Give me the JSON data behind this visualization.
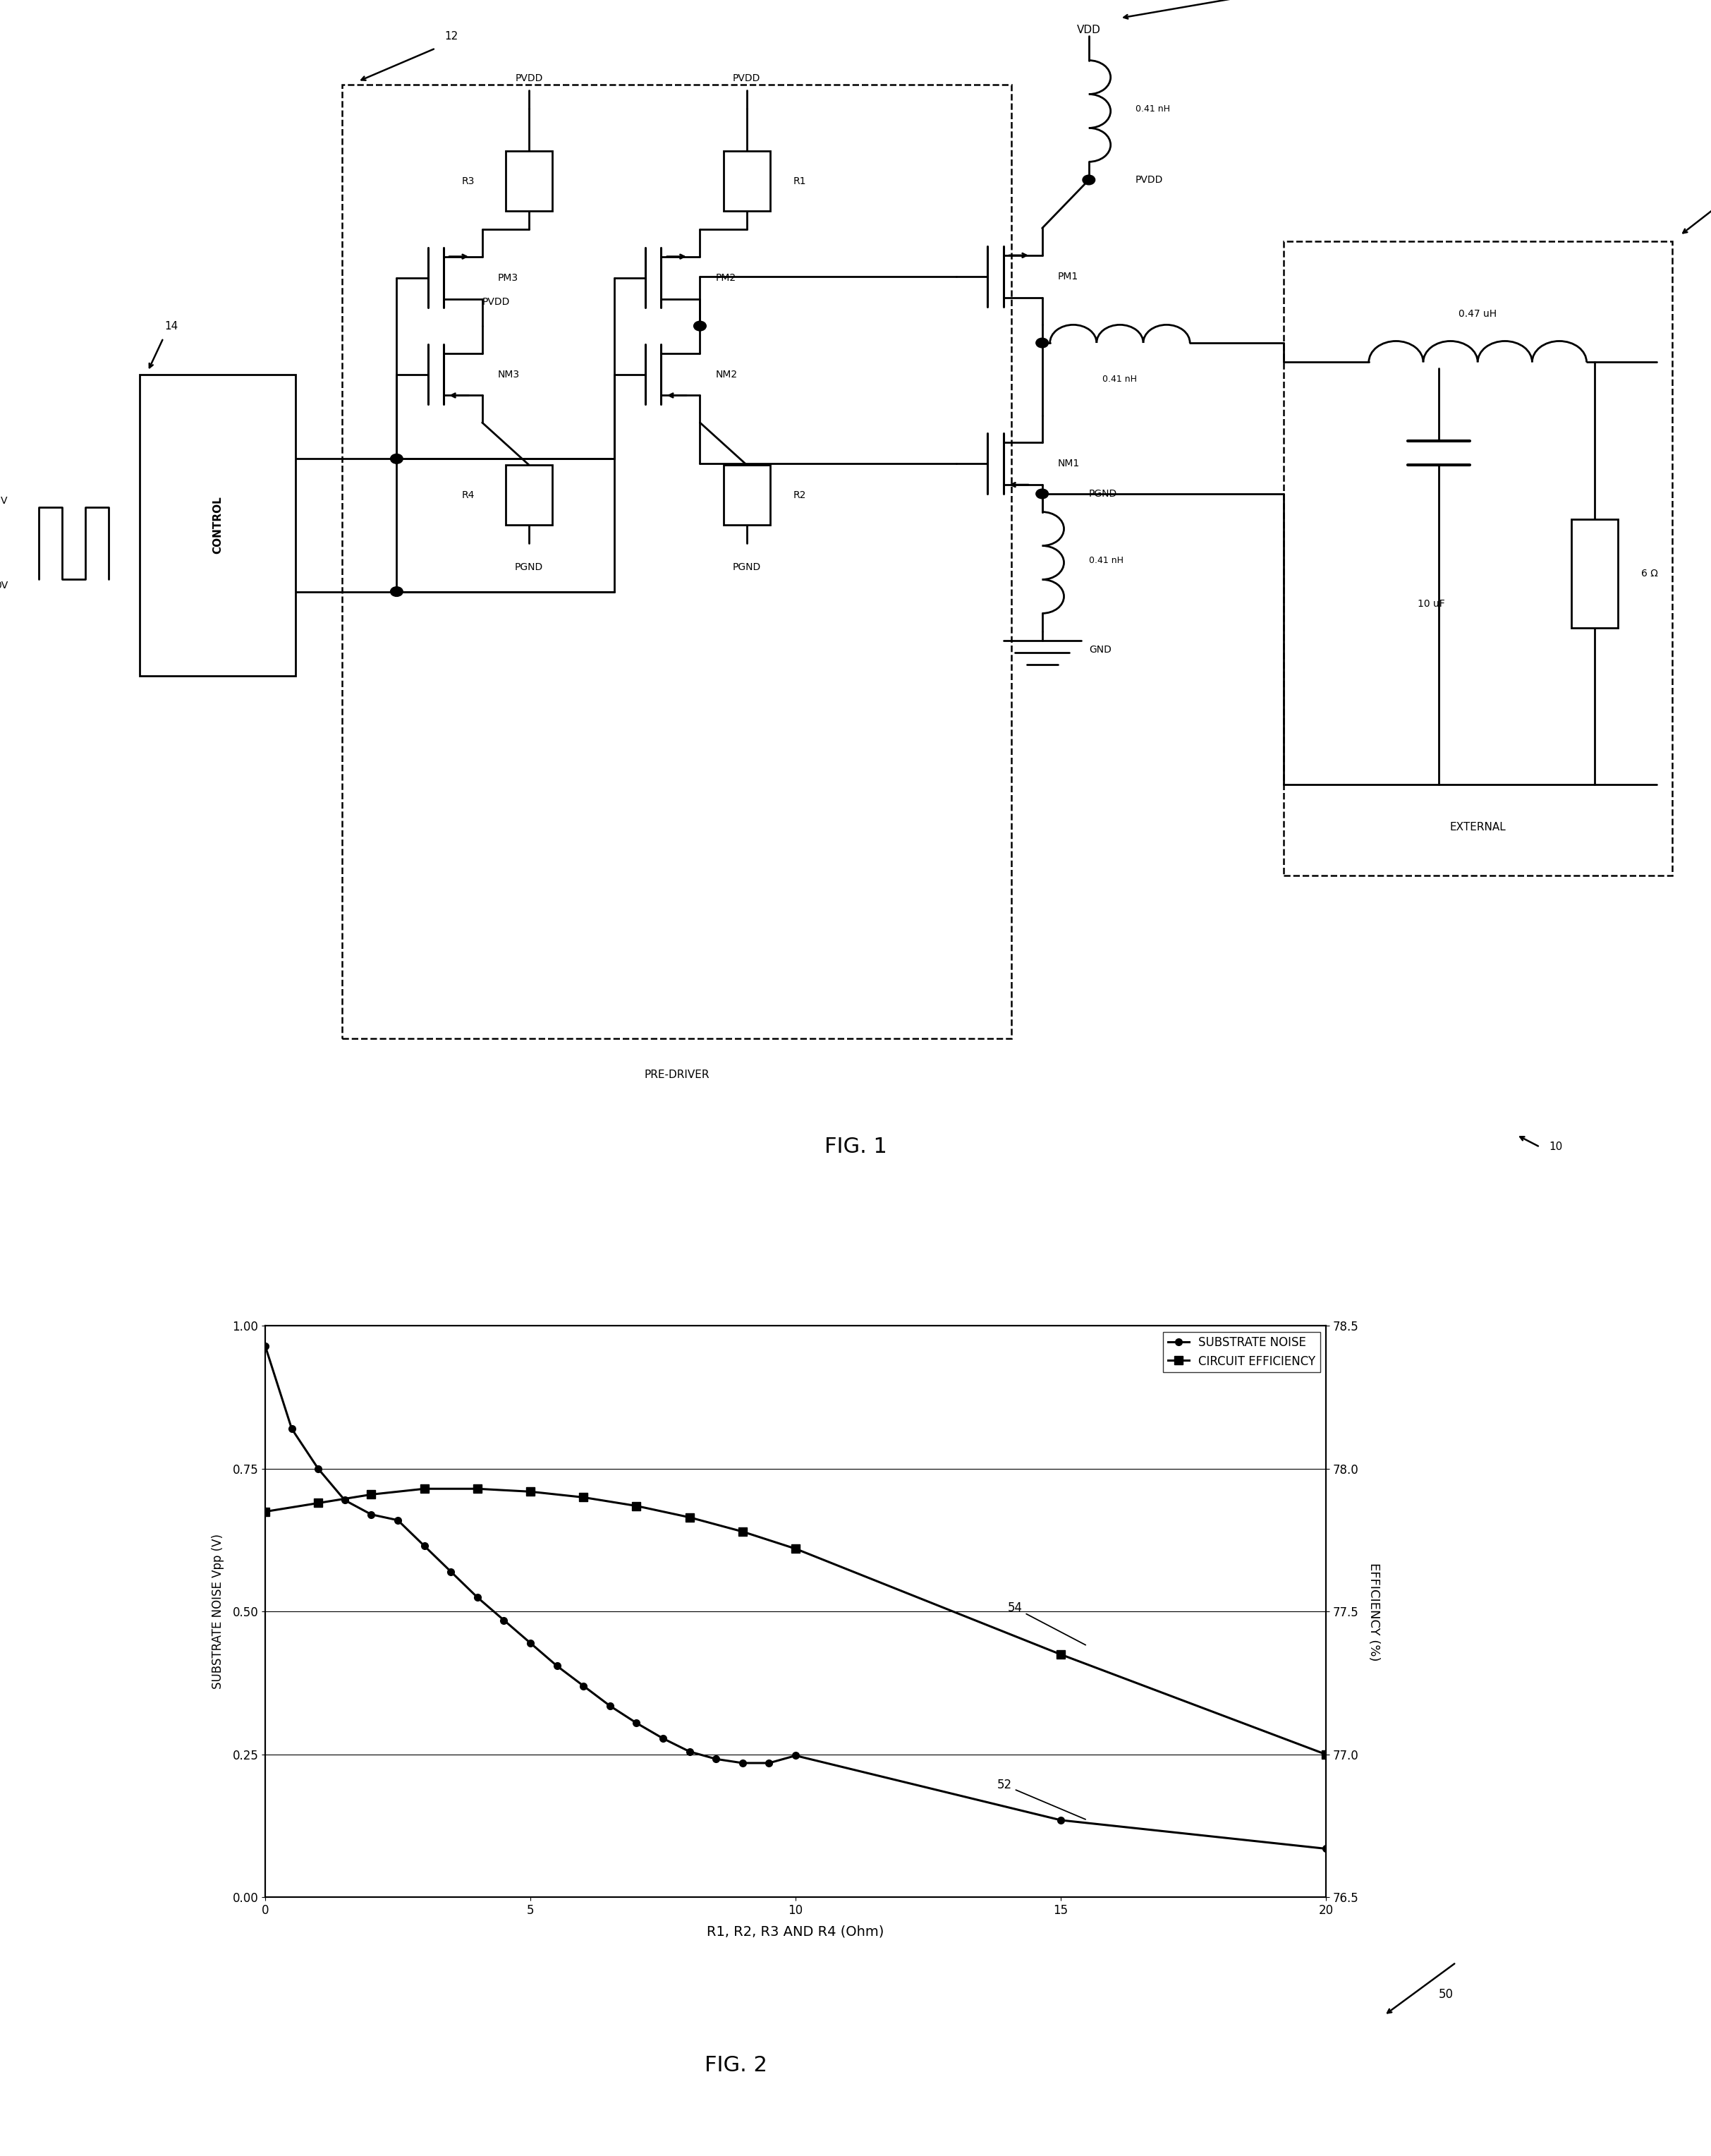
{
  "fig1_title": "FIG. 1",
  "fig2_title": "FIG. 2",
  "noise_x": [
    0.0,
    0.5,
    1.0,
    1.5,
    2.0,
    2.5,
    3.0,
    3.5,
    4.0,
    4.5,
    5.0,
    5.5,
    6.0,
    6.5,
    7.0,
    7.5,
    8.0,
    8.5,
    9.0,
    9.5,
    10.0,
    15.0,
    20.0
  ],
  "noise_y": [
    0.965,
    0.82,
    0.75,
    0.695,
    0.67,
    0.66,
    0.615,
    0.57,
    0.525,
    0.485,
    0.445,
    0.405,
    0.37,
    0.335,
    0.305,
    0.278,
    0.255,
    0.242,
    0.235,
    0.235,
    0.248,
    0.135,
    0.085
  ],
  "efficiency_x": [
    0.0,
    1.0,
    2.0,
    3.0,
    4.0,
    5.0,
    6.0,
    7.0,
    8.0,
    9.0,
    10.0,
    15.0,
    20.0
  ],
  "efficiency_y": [
    77.85,
    77.88,
    77.91,
    77.93,
    77.93,
    77.92,
    77.9,
    77.87,
    77.83,
    77.78,
    77.72,
    77.35,
    77.0
  ],
  "xlabel": "R1, R2, R3 AND R4 (Ohm)",
  "ylabel_left": "SUBSTRATE NOISE Vpp (V)",
  "ylabel_right": "EFFICIENCY (%)",
  "xlim": [
    0,
    20
  ],
  "ylim_left": [
    0.0,
    1.0
  ],
  "ylim_right": [
    76.5,
    78.5
  ],
  "xticks": [
    0,
    5,
    10,
    15,
    20
  ],
  "yticks_left": [
    0.0,
    0.25,
    0.5,
    0.75,
    1.0
  ],
  "yticks_right": [
    76.5,
    77.0,
    77.5,
    78.0,
    78.5
  ],
  "legend_noise": "SUBSTRATE NOISE",
  "legend_efficiency": "CIRCUIT EFFICIENCY",
  "bg_color": "#ffffff"
}
